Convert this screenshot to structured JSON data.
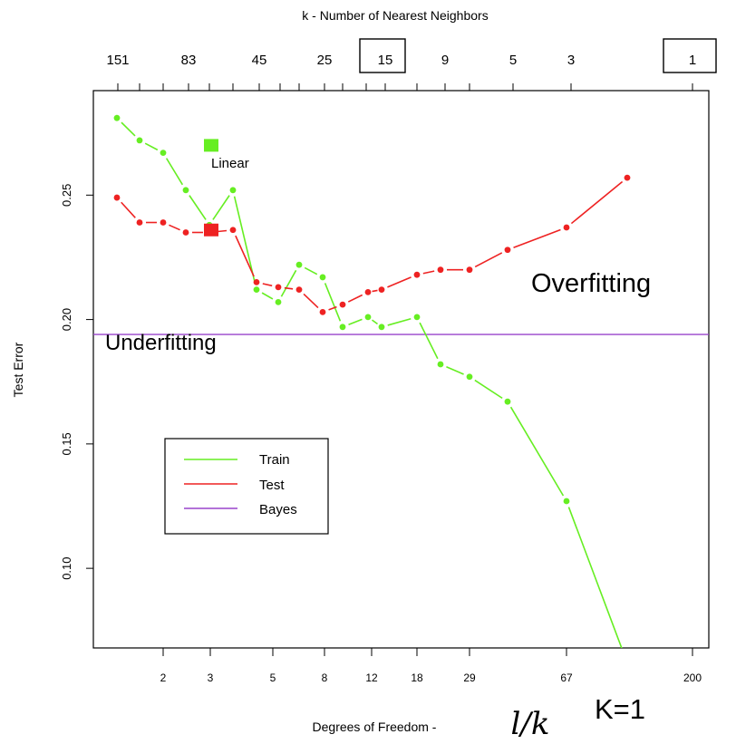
{
  "chart_data": {
    "type": "line",
    "top_axis_label": "k -  Number of Nearest Neighbors",
    "top_ticks": [
      "151",
      "83",
      "45",
      "25",
      "15",
      "9",
      "5",
      "3",
      "1"
    ],
    "boxed_top_ticks": [
      "15",
      "1"
    ],
    "xlabel_prefix": "Degrees of Freedom -",
    "xlabel_formula": "l/k",
    "ylabel": "Test Error",
    "x_ticks": [
      "2",
      "3",
      "5",
      "8",
      "12",
      "18",
      "29",
      "67",
      "200"
    ],
    "y_ticks": [
      "0.10",
      "0.15",
      "0.20",
      "0.25"
    ],
    "ylim": [
      0.068,
      0.292
    ],
    "series": [
      {
        "name": "Train",
        "color": "#66ee22",
        "values": [
          0.281,
          0.272,
          0.267,
          0.252,
          0.238,
          0.252,
          0.212,
          0.207,
          0.222,
          0.217,
          0.197,
          0.201,
          0.197,
          0.201,
          0.182,
          0.177,
          0.167,
          0.127,
          0.062
        ]
      },
      {
        "name": "Test",
        "color": "#ee2222",
        "values": [
          0.249,
          0.239,
          0.239,
          0.235,
          0.235,
          0.236,
          0.215,
          0.213,
          0.212,
          0.203,
          0.206,
          0.211,
          0.212,
          0.218,
          0.22,
          0.22,
          0.228,
          0.237,
          0.257
        ]
      },
      {
        "name": "Bayes",
        "color": "#9944cc",
        "value": 0.194
      }
    ],
    "linear": {
      "label": "Linear",
      "train": 0.27,
      "test": 0.236
    },
    "annotations": {
      "overfitting": "Overfitting",
      "underfitting": "Underfitting",
      "k1": "K=1"
    },
    "legend_position": "lower-left"
  }
}
